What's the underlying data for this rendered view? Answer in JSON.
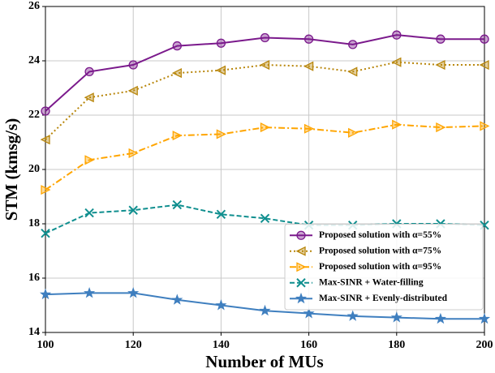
{
  "chart_data": {
    "type": "line",
    "xlabel": "Number of MUs",
    "ylabel": "STM (kmsg/s)",
    "x": [
      100,
      110,
      120,
      130,
      140,
      150,
      160,
      170,
      180,
      190,
      200
    ],
    "xlim": [
      100,
      200
    ],
    "xticks": [
      100,
      120,
      140,
      160,
      180,
      200
    ],
    "ylim": [
      14,
      26
    ],
    "yticks": [
      14,
      16,
      18,
      20,
      22,
      24,
      26
    ],
    "grid": true,
    "legend": "lower right",
    "series": [
      {
        "name": "Proposed solution with α=55%",
        "color": "#7b1a8c",
        "marker": "circle",
        "linestyle": "solid",
        "values": [
          22.15,
          23.6,
          23.85,
          24.55,
          24.65,
          24.85,
          24.8,
          24.6,
          24.95,
          24.8,
          24.8
        ]
      },
      {
        "name": "Proposed solution with α=75%",
        "color": "#b8860b",
        "marker": "triangle-left",
        "linestyle": "dotted",
        "values": [
          21.1,
          22.65,
          22.9,
          23.55,
          23.65,
          23.85,
          23.8,
          23.6,
          23.95,
          23.85,
          23.85
        ]
      },
      {
        "name": "Proposed solution with α=95%",
        "color": "#ffa500",
        "marker": "triangle-right",
        "linestyle": "dashdot",
        "values": [
          19.25,
          20.35,
          20.6,
          21.25,
          21.3,
          21.55,
          21.5,
          21.35,
          21.65,
          21.55,
          21.6
        ]
      },
      {
        "name": "Max-SINR + Water-filling",
        "color": "#108f8f",
        "marker": "x",
        "linestyle": "dashed",
        "values": [
          17.65,
          18.4,
          18.5,
          18.7,
          18.35,
          18.2,
          17.95,
          17.95,
          18.0,
          18.0,
          17.95
        ]
      },
      {
        "name": "Max-SINR + Evenly-distributed",
        "color": "#3f7fbf",
        "marker": "star",
        "linestyle": "solid",
        "values": [
          15.4,
          15.45,
          15.45,
          15.2,
          15.0,
          14.8,
          14.7,
          14.6,
          14.55,
          14.5,
          14.5
        ]
      }
    ]
  }
}
